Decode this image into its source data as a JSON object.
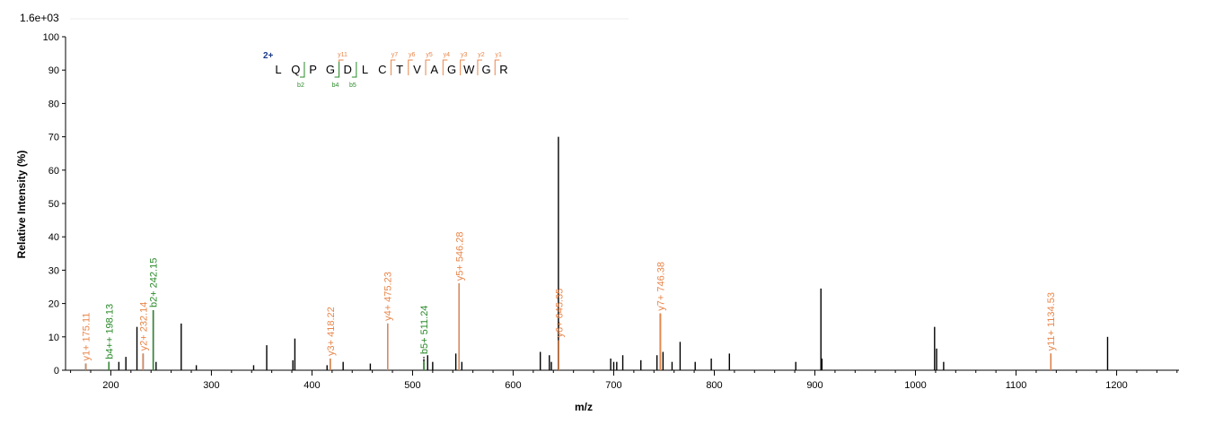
{
  "colors": {
    "b_ion": "#2a8a2a",
    "y_ion": "#e8864a",
    "charge": "#1c3a8a",
    "peak": "#000000",
    "axis": "#000000"
  },
  "chart_data": {
    "type": "bar",
    "scale_label": "1.6e+03",
    "xlabel": "m/z",
    "ylabel": "Relative   Intensity (%)",
    "xlim": [
      155,
      1262
    ],
    "ylim": [
      0,
      100
    ],
    "x_ticks": [
      200,
      300,
      400,
      500,
      600,
      700,
      800,
      900,
      1000,
      1100,
      1200
    ],
    "y_ticks": [
      0,
      10,
      20,
      30,
      40,
      50,
      60,
      70,
      80,
      90,
      100
    ],
    "peaks": [
      {
        "mz": 175.11,
        "intensity": 2.0
      },
      {
        "mz": 198.13,
        "intensity": 2.5
      },
      {
        "mz": 208.0,
        "intensity": 2.5
      },
      {
        "mz": 215.0,
        "intensity": 4.0
      },
      {
        "mz": 226.0,
        "intensity": 13.0
      },
      {
        "mz": 232.14,
        "intensity": 5.0
      },
      {
        "mz": 242.15,
        "intensity": 18.0
      },
      {
        "mz": 245.0,
        "intensity": 2.5
      },
      {
        "mz": 270.0,
        "intensity": 14.0
      },
      {
        "mz": 285.0,
        "intensity": 1.5
      },
      {
        "mz": 342.0,
        "intensity": 1.5
      },
      {
        "mz": 355.0,
        "intensity": 7.5
      },
      {
        "mz": 381.0,
        "intensity": 3.0
      },
      {
        "mz": 383.0,
        "intensity": 9.5
      },
      {
        "mz": 415.0,
        "intensity": 1.5
      },
      {
        "mz": 418.22,
        "intensity": 3.5
      },
      {
        "mz": 431.0,
        "intensity": 2.5
      },
      {
        "mz": 458.0,
        "intensity": 2.0
      },
      {
        "mz": 475.23,
        "intensity": 14.0
      },
      {
        "mz": 511.24,
        "intensity": 4.0
      },
      {
        "mz": 515.0,
        "intensity": 4.5
      },
      {
        "mz": 520.0,
        "intensity": 2.5
      },
      {
        "mz": 543.0,
        "intensity": 5.0
      },
      {
        "mz": 546.28,
        "intensity": 26.0
      },
      {
        "mz": 549.0,
        "intensity": 2.5
      },
      {
        "mz": 627.0,
        "intensity": 5.5
      },
      {
        "mz": 636.0,
        "intensity": 4.5
      },
      {
        "mz": 638.0,
        "intensity": 2.5
      },
      {
        "mz": 645.0,
        "intensity": 70.0
      },
      {
        "mz": 645.35,
        "intensity": 9.0
      },
      {
        "mz": 697.0,
        "intensity": 3.5
      },
      {
        "mz": 700.0,
        "intensity": 2.5
      },
      {
        "mz": 703.0,
        "intensity": 2.5
      },
      {
        "mz": 709.0,
        "intensity": 4.5
      },
      {
        "mz": 727.0,
        "intensity": 3.0
      },
      {
        "mz": 743.0,
        "intensity": 4.5
      },
      {
        "mz": 746.38,
        "intensity": 17.0
      },
      {
        "mz": 749.0,
        "intensity": 5.5
      },
      {
        "mz": 758.0,
        "intensity": 2.5
      },
      {
        "mz": 766.0,
        "intensity": 8.5
      },
      {
        "mz": 781.0,
        "intensity": 2.5
      },
      {
        "mz": 797.0,
        "intensity": 3.5
      },
      {
        "mz": 815.0,
        "intensity": 5.0
      },
      {
        "mz": 881.0,
        "intensity": 2.5
      },
      {
        "mz": 906.0,
        "intensity": 24.5
      },
      {
        "mz": 907.0,
        "intensity": 3.5
      },
      {
        "mz": 1019.0,
        "intensity": 13.0
      },
      {
        "mz": 1021.0,
        "intensity": 6.5
      },
      {
        "mz": 1028.0,
        "intensity": 2.5
      },
      {
        "mz": 1134.53,
        "intensity": 5.0
      },
      {
        "mz": 1191.0,
        "intensity": 10.0
      }
    ],
    "annotations": [
      {
        "text": "y1+ 175.11",
        "mz": 175.11,
        "intensity": 2.0,
        "ion": "y"
      },
      {
        "text": "b4++ 198.13",
        "mz": 198.13,
        "intensity": 2.5,
        "ion": "b"
      },
      {
        "text": "y2+ 232.14",
        "mz": 232.14,
        "intensity": 5.0,
        "ion": "y"
      },
      {
        "text": "b2+ 242.15",
        "mz": 242.15,
        "intensity": 18.0,
        "ion": "b"
      },
      {
        "text": "y3+ 418.22",
        "mz": 418.22,
        "intensity": 3.5,
        "ion": "y"
      },
      {
        "text": "y4+ 475.23",
        "mz": 475.23,
        "intensity": 14.0,
        "ion": "y"
      },
      {
        "text": "b5+ 511.24",
        "mz": 511.24,
        "intensity": 4.0,
        "ion": "b",
        "dashed": true
      },
      {
        "text": "y5+ 546.28",
        "mz": 546.28,
        "intensity": 26.0,
        "ion": "y"
      },
      {
        "text": "y6+ 645.35",
        "mz": 645.35,
        "intensity": 9.0,
        "ion": "y"
      },
      {
        "text": "y7+ 746.38",
        "mz": 746.38,
        "intensity": 17.0,
        "ion": "y"
      },
      {
        "text": "y11+ 1134.53",
        "mz": 1134.53,
        "intensity": 5.0,
        "ion": "y"
      }
    ],
    "sequence": {
      "charge": "2+",
      "residues": [
        "L",
        "Q",
        "P",
        "G",
        "D",
        "L",
        "C",
        "T",
        "V",
        "A",
        "G",
        "W",
        "G",
        "R"
      ],
      "y_marks": [
        {
          "after": 4,
          "label": "y11"
        },
        {
          "after": 7,
          "label": "y7"
        },
        {
          "after": 8,
          "label": "y6"
        },
        {
          "after": 9,
          "label": "y5"
        },
        {
          "after": 10,
          "label": "y4"
        },
        {
          "after": 11,
          "label": "y3"
        },
        {
          "after": 12,
          "label": "y2"
        },
        {
          "after": 13,
          "label": "y1"
        }
      ],
      "b_marks": [
        {
          "after": 2,
          "label": "b2"
        },
        {
          "after": 4,
          "label": "b4"
        },
        {
          "after": 5,
          "label": "b5"
        }
      ]
    }
  }
}
